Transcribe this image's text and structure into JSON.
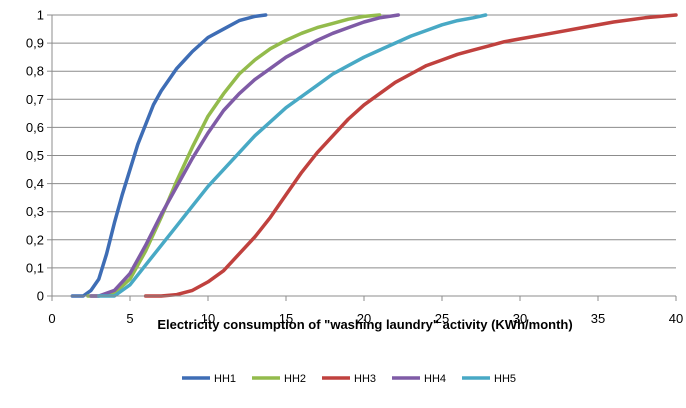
{
  "chart_data": {
    "type": "line",
    "title": "",
    "xlabel": "Electricity consumption of \"washing laundry\" activity (KWh/month)",
    "ylabel": "",
    "xlim": [
      0,
      40
    ],
    "ylim": [
      0,
      1
    ],
    "xticks": [
      0,
      5,
      10,
      15,
      20,
      25,
      30,
      35,
      40
    ],
    "yticks": [
      0,
      0.1,
      0.2,
      0.3,
      0.4,
      0.5,
      0.6,
      0.7,
      0.8,
      0.9,
      1
    ],
    "xtick_labels": [
      "0",
      "5",
      "10",
      "15",
      "20",
      "25",
      "30",
      "35",
      "40"
    ],
    "ytick_labels": [
      "0",
      "0,1",
      "0,2",
      "0,3",
      "0,4",
      "0,5",
      "0,6",
      "0,7",
      "0,8",
      "0,9",
      "1"
    ],
    "grid": "horizontal",
    "legend_position": "bottom",
    "series": [
      {
        "name": "HH1",
        "color": "#3e6db5",
        "x": [
          1.3,
          2.0,
          2.5,
          3.0,
          3.5,
          4.0,
          4.5,
          5.0,
          5.5,
          6.0,
          6.5,
          7.0,
          7.5,
          8.0,
          8.5,
          9.0,
          10.0,
          11.0,
          12.0,
          13.0,
          13.7
        ],
        "y": [
          0.0,
          0.0,
          0.02,
          0.06,
          0.15,
          0.26,
          0.36,
          0.45,
          0.54,
          0.61,
          0.68,
          0.73,
          0.77,
          0.81,
          0.84,
          0.87,
          0.92,
          0.95,
          0.98,
          0.995,
          1.0
        ]
      },
      {
        "name": "HH2",
        "color": "#93bb4c",
        "x": [
          2.3,
          3.0,
          4.0,
          5.0,
          6.0,
          7.0,
          8.0,
          9.0,
          10.0,
          11.0,
          12.0,
          13.0,
          14.0,
          15.0,
          16.0,
          17.0,
          18.0,
          19.0,
          20.0,
          21.0
        ],
        "y": [
          0.0,
          0.0,
          0.01,
          0.06,
          0.16,
          0.28,
          0.41,
          0.53,
          0.64,
          0.72,
          0.79,
          0.84,
          0.88,
          0.91,
          0.935,
          0.955,
          0.97,
          0.985,
          0.995,
          1.0
        ]
      },
      {
        "name": "HH3",
        "color": "#c0413e",
        "x": [
          6.0,
          7.0,
          8.0,
          9.0,
          10.0,
          11.0,
          12.0,
          13.0,
          14.0,
          15.0,
          16.0,
          17.0,
          18.0,
          19.0,
          20.0,
          21.0,
          22.0,
          23.0,
          24.0,
          25.0,
          26.0,
          27.0,
          28.0,
          29.0,
          30.0,
          32.0,
          34.0,
          36.0,
          38.0,
          40.0
        ],
        "y": [
          0.0,
          0.0,
          0.005,
          0.02,
          0.05,
          0.09,
          0.15,
          0.21,
          0.28,
          0.36,
          0.44,
          0.51,
          0.57,
          0.63,
          0.68,
          0.72,
          0.76,
          0.79,
          0.82,
          0.84,
          0.86,
          0.875,
          0.89,
          0.905,
          0.915,
          0.935,
          0.955,
          0.975,
          0.99,
          1.0
        ]
      },
      {
        "name": "HH4",
        "color": "#7f5ba6",
        "x": [
          2.5,
          3.0,
          4.0,
          5.0,
          6.0,
          7.0,
          8.0,
          9.0,
          10.0,
          11.0,
          12.0,
          13.0,
          14.0,
          15.0,
          16.0,
          17.0,
          18.0,
          19.0,
          20.0,
          21.0,
          22.2
        ],
        "y": [
          0.0,
          0.0,
          0.02,
          0.08,
          0.18,
          0.29,
          0.39,
          0.49,
          0.58,
          0.66,
          0.72,
          0.77,
          0.81,
          0.85,
          0.88,
          0.91,
          0.935,
          0.955,
          0.975,
          0.99,
          1.0
        ]
      },
      {
        "name": "HH5",
        "color": "#48a9c5",
        "x": [
          3.0,
          4.0,
          5.0,
          6.0,
          7.0,
          8.0,
          9.0,
          10.0,
          11.0,
          12.0,
          13.0,
          14.0,
          15.0,
          16.0,
          17.0,
          18.0,
          19.0,
          20.0,
          21.0,
          22.0,
          23.0,
          24.0,
          25.0,
          26.0,
          27.0,
          27.8
        ],
        "y": [
          0.0,
          0.0,
          0.04,
          0.11,
          0.18,
          0.25,
          0.32,
          0.39,
          0.45,
          0.51,
          0.57,
          0.62,
          0.67,
          0.71,
          0.75,
          0.79,
          0.82,
          0.85,
          0.875,
          0.9,
          0.925,
          0.945,
          0.965,
          0.98,
          0.99,
          1.0
        ]
      }
    ]
  }
}
